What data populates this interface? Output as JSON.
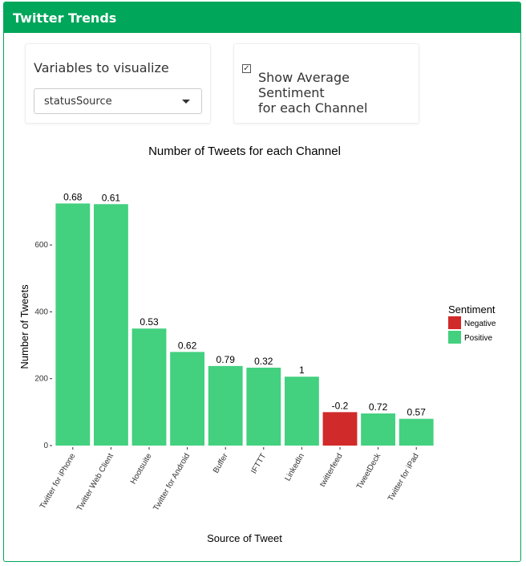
{
  "box": {
    "title": "Twitter Trends",
    "accent_color": "#00a65a"
  },
  "controls": {
    "variable_label": "Variables to visualize",
    "variable_selected": "statusSource",
    "checkbox_checked": true,
    "checkbox_label_line1": "Show Average Sentiment",
    "checkbox_label_line2": "for each Channel"
  },
  "chart_data": {
    "type": "bar",
    "title": "Number of Tweets for each Channel",
    "xlabel": "Source of Tweet",
    "ylabel": "Number of Tweets",
    "ylim": [
      0,
      780
    ],
    "yticks": [
      0,
      200,
      400,
      600
    ],
    "categories": [
      "Twitter for iPhone",
      "Twitter Web Client",
      "Hootsuite",
      "Twitter for Android",
      "Buffer",
      "IFTTT",
      "LinkedIn",
      "twitterfeed",
      "TweetDeck",
      "Twitter for iPad"
    ],
    "values": [
      724,
      722,
      350,
      280,
      238,
      233,
      206,
      100,
      96,
      80
    ],
    "sentiment_labels": [
      "0.68",
      "0.61",
      "0.53",
      "0.62",
      "0.79",
      "0.32",
      "1",
      "-0.2",
      "0.72",
      "0.57"
    ],
    "sentiment_class": [
      "Positive",
      "Positive",
      "Positive",
      "Positive",
      "Positive",
      "Positive",
      "Positive",
      "Negative",
      "Positive",
      "Positive"
    ],
    "legend": {
      "title": "Sentiment",
      "position": "right",
      "entries": [
        {
          "name": "Negative",
          "color": "#d12a2a"
        },
        {
          "name": "Positive",
          "color": "#43d07f"
        }
      ]
    },
    "grid": false
  }
}
